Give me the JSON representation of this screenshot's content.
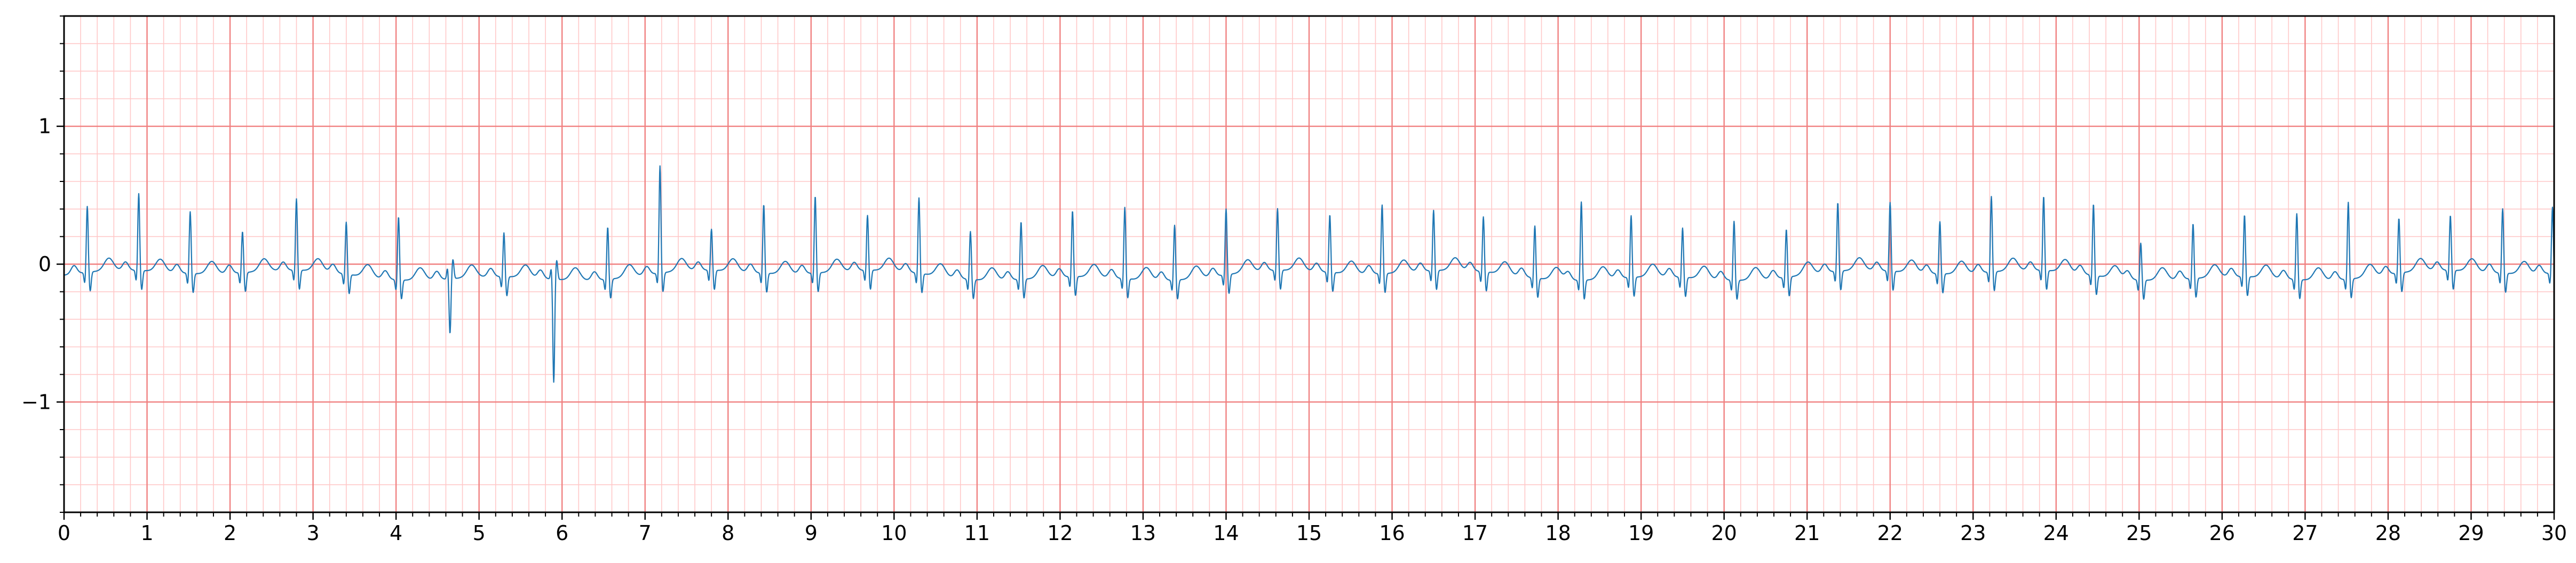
{
  "chart_data": {
    "type": "line",
    "title": "",
    "xlabel": "",
    "ylabel": "",
    "xlim": [
      0,
      30
    ],
    "ylim": [
      -1.8,
      1.8
    ],
    "x_ticks": [
      0,
      1,
      2,
      3,
      4,
      5,
      6,
      7,
      8,
      9,
      10,
      11,
      12,
      13,
      14,
      15,
      16,
      17,
      18,
      19,
      20,
      21,
      22,
      23,
      24,
      25,
      26,
      27,
      28,
      29,
      30
    ],
    "x_tick_labels": [
      "0",
      "1",
      "2",
      "3",
      "4",
      "5",
      "6",
      "7",
      "8",
      "9",
      "10",
      "11",
      "12",
      "13",
      "14",
      "15",
      "16",
      "17",
      "18",
      "19",
      "20",
      "21",
      "22",
      "23",
      "24",
      "25",
      "26",
      "27",
      "28",
      "29",
      "30"
    ],
    "y_ticks": [
      -1,
      0,
      1
    ],
    "y_tick_labels": [
      "−1",
      "0",
      "1"
    ],
    "grid": {
      "major_x_step": 1,
      "minor_x_step": 0.2,
      "major_y_step": 1,
      "minor_y_step": 0.2,
      "major_color": "#f08080",
      "minor_color": "#ffc8c8"
    },
    "series": [
      {
        "color": "#1f77b4",
        "beats": [
          {
            "t": 0.28,
            "r": 0.48
          },
          {
            "t": 0.9,
            "r": 0.56
          },
          {
            "t": 1.52,
            "r": 0.45
          },
          {
            "t": 2.15,
            "r": 0.3
          },
          {
            "t": 2.8,
            "r": 0.52
          },
          {
            "t": 3.4,
            "r": 0.38
          },
          {
            "t": 4.03,
            "r": 0.46
          },
          {
            "t": 4.65,
            "r": -0.4
          },
          {
            "t": 5.3,
            "r": 0.32
          },
          {
            "t": 5.9,
            "r": -0.75
          },
          {
            "t": 6.55,
            "r": 0.38
          },
          {
            "t": 7.18,
            "r": 0.78
          },
          {
            "t": 7.8,
            "r": 0.3
          },
          {
            "t": 8.43,
            "r": 0.5
          },
          {
            "t": 9.05,
            "r": 0.56
          },
          {
            "t": 9.68,
            "r": 0.4
          },
          {
            "t": 10.3,
            "r": 0.55
          },
          {
            "t": 10.92,
            "r": 0.35
          },
          {
            "t": 11.53,
            "r": 0.42
          },
          {
            "t": 12.15,
            "r": 0.48
          },
          {
            "t": 12.78,
            "r": 0.52
          },
          {
            "t": 13.38,
            "r": 0.4
          },
          {
            "t": 14.0,
            "r": 0.48
          },
          {
            "t": 14.62,
            "r": 0.45
          },
          {
            "t": 15.25,
            "r": 0.42
          },
          {
            "t": 15.88,
            "r": 0.5
          },
          {
            "t": 16.5,
            "r": 0.44
          },
          {
            "t": 17.1,
            "r": 0.4
          },
          {
            "t": 17.72,
            "r": 0.38
          },
          {
            "t": 18.28,
            "r": 0.57
          },
          {
            "t": 18.88,
            "r": 0.45
          },
          {
            "t": 19.5,
            "r": 0.36
          },
          {
            "t": 20.12,
            "r": 0.43
          },
          {
            "t": 20.75,
            "r": 0.35
          },
          {
            "t": 21.37,
            "r": 0.5
          },
          {
            "t": 22.0,
            "r": 0.5
          },
          {
            "t": 22.6,
            "r": 0.38
          },
          {
            "t": 23.22,
            "r": 0.55
          },
          {
            "t": 23.85,
            "r": 0.54
          },
          {
            "t": 24.45,
            "r": 0.52
          },
          {
            "t": 25.02,
            "r": 0.27
          },
          {
            "t": 25.65,
            "r": 0.4
          },
          {
            "t": 26.27,
            "r": 0.45
          },
          {
            "t": 26.9,
            "r": 0.48
          },
          {
            "t": 27.52,
            "r": 0.56
          },
          {
            "t": 28.13,
            "r": 0.4
          },
          {
            "t": 28.75,
            "r": 0.4
          },
          {
            "t": 29.38,
            "r": 0.47
          },
          {
            "t": 29.98,
            "r": 0.48
          }
        ]
      }
    ]
  }
}
